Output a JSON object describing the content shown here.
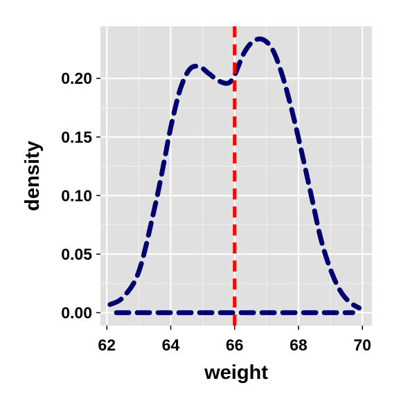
{
  "chart_data": {
    "type": "line",
    "title": "",
    "xlabel": "weight",
    "ylabel": "density",
    "xlim": [
      61.8,
      70.3
    ],
    "ylim": [
      -0.011,
      0.2445
    ],
    "x_ticks": [
      62,
      64,
      66,
      68,
      70
    ],
    "x_tick_labels": [
      "62",
      "64",
      "66",
      "68",
      "70"
    ],
    "y_ticks": [
      0.0,
      0.05,
      0.1,
      0.15,
      0.2
    ],
    "y_tick_labels": [
      "0.00",
      "0.05",
      "0.10",
      "0.15",
      "0.20"
    ],
    "grid": true,
    "panel_background": "#e0e0e0",
    "grid_color": "#ffffff",
    "series": [
      {
        "line_style": "dashed",
        "color": "#00006f",
        "x": [
          62.1,
          62.5,
          63.0,
          63.5,
          63.8,
          64.0,
          64.3,
          64.6,
          64.9,
          65.2,
          65.5,
          65.8,
          66.0,
          66.3,
          66.6,
          66.9,
          67.2,
          67.5,
          67.8,
          68.1,
          68.4,
          68.7,
          69.0,
          69.3,
          69.6,
          69.9
        ],
        "y": [
          0.007,
          0.013,
          0.035,
          0.09,
          0.13,
          0.158,
          0.191,
          0.208,
          0.21,
          0.204,
          0.198,
          0.196,
          0.203,
          0.222,
          0.232,
          0.233,
          0.224,
          0.202,
          0.172,
          0.137,
          0.1,
          0.063,
          0.037,
          0.019,
          0.009,
          0.004
        ]
      }
    ],
    "baseline": {
      "x": [
        62.3,
        69.7
      ],
      "y": 0.0,
      "line_style": "dashed",
      "color": "#00006f"
    },
    "vline": {
      "x": 66.0,
      "line_style": "dashed",
      "color": "#ff0000"
    }
  }
}
